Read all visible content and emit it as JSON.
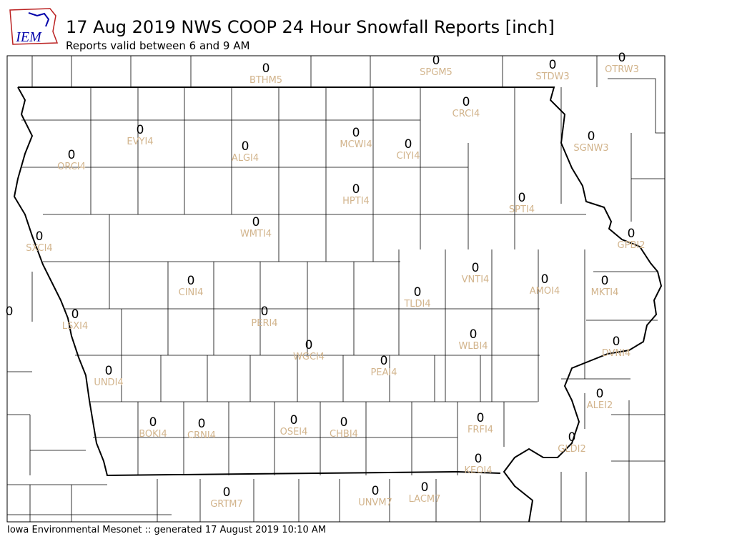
{
  "header": {
    "logo": "IEM",
    "title": "17 Aug 2019 NWS COOP 24 Hour Snowfall Reports [inch]",
    "subtitle": "Reports valid between 6 and 9 AM"
  },
  "footer": "Iowa Environmental Mesonet :: generated 17 August 2019 10:10 AM",
  "stations": [
    {
      "id": "BTHM5",
      "value": 0
    },
    {
      "id": "SPGM5",
      "value": 0
    },
    {
      "id": "STDW3",
      "value": 0
    },
    {
      "id": "OTRW3",
      "value": 0
    },
    {
      "id": "CRCI4",
      "value": 0
    },
    {
      "id": "EVYI4",
      "value": 0
    },
    {
      "id": "ALGI4",
      "value": 0
    },
    {
      "id": "MCWI4",
      "value": 0
    },
    {
      "id": "CIYI4",
      "value": 0
    },
    {
      "id": "ORCI4",
      "value": 0
    },
    {
      "id": "SGNW3",
      "value": 0
    },
    {
      "id": "HPTI4",
      "value": 0
    },
    {
      "id": "SPTI4",
      "value": 0
    },
    {
      "id": "WMTI4",
      "value": 0
    },
    {
      "id": "SXCI4",
      "value": 0
    },
    {
      "id": "GPBI2",
      "value": 0
    },
    {
      "id": "VNTI4",
      "value": 0
    },
    {
      "id": "AMOI4",
      "value": 0
    },
    {
      "id": "MKTI4",
      "value": 0
    },
    {
      "id": "CINI4",
      "value": 0
    },
    {
      "id": "TLDI4",
      "value": 0
    },
    {
      "id": "PERI4",
      "value": 0
    },
    {
      "id": "LSXI4",
      "value": 0
    },
    {
      "value": 0
    },
    {
      "id": "WLBI4",
      "value": 0
    },
    {
      "id": "DVNI4",
      "value": 0
    },
    {
      "id": "WGCI4",
      "value": 0
    },
    {
      "id": "PEAI4",
      "value": 0
    },
    {
      "id": "UNDI4",
      "value": 0
    },
    {
      "id": "ALEI2",
      "value": 0
    },
    {
      "id": "FRFI4",
      "value": 0
    },
    {
      "id": "BOKI4",
      "value": 0
    },
    {
      "id": "CRNI4",
      "value": 0
    },
    {
      "id": "OSEI4",
      "value": 0
    },
    {
      "id": "CHBI4",
      "value": 0
    },
    {
      "id": "GLDI2",
      "value": 0
    },
    {
      "id": "KEOI4",
      "value": 0
    },
    {
      "id": "GRTM7",
      "value": 0
    },
    {
      "id": "UNVM7",
      "value": 0
    },
    {
      "id": "LACM7",
      "value": 0
    }
  ]
}
